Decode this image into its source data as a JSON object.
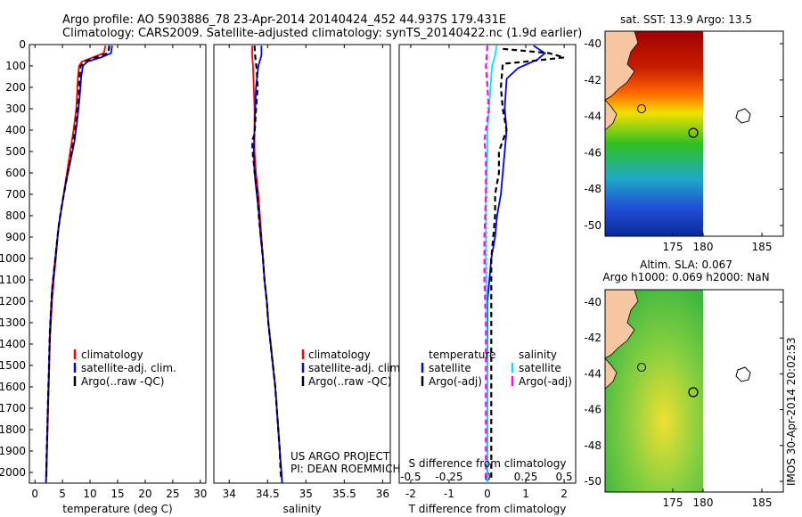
{
  "titles": {
    "line1": "Argo profile: AO 5903886_78 23-Apr-2014 20140424_452 44.937S 179.431E",
    "line2": "Climatology: CARS2009. Satellite-adjusted climatology: synTS_20140422.nc (1.9d earlier)"
  },
  "colors": {
    "climatology": "#ff0000",
    "satellite": "#0000ff",
    "argo": "#000000",
    "sal_satellite": "#00e5ff",
    "sal_argo": "#ff00ff",
    "land": "#f5c6a0"
  },
  "credits": {
    "project": "US ARGO PROJECT",
    "pi": "PI: DEAN ROEMMICH",
    "imos": "IMOS 30-Apr-2014 20:02:53"
  },
  "maps": {
    "sst_title": "sat. SST: 13.9 Argo: 13.5",
    "sla_title1": "Altim. SLA: 0.067",
    "sla_title2": "Argo h1000: 0.069 h2000: NaN",
    "x_ticks": [
      "175",
      "180",
      "185"
    ],
    "y_ticks": [
      "-40",
      "-42",
      "-44",
      "-46",
      "-48",
      "-50"
    ]
  },
  "chart_data": [
    {
      "type": "line",
      "xlabel": "temperature (deg C)",
      "x_ticks": [
        "0",
        "5",
        "10",
        "15",
        "20",
        "25",
        "30"
      ],
      "xlim": [
        -1,
        31
      ],
      "ylim": [
        0,
        2050
      ],
      "y_ticks": [
        "0",
        "100",
        "200",
        "300",
        "400",
        "500",
        "600",
        "700",
        "800",
        "900",
        "1000",
        "1100",
        "1200",
        "1300",
        "1400",
        "1500",
        "1600",
        "1700",
        "1800",
        "1900",
        "2000"
      ],
      "legend": [
        "climatology",
        "satellite-adj. clim.",
        "Argo(..raw -QC)"
      ],
      "series": [
        {
          "name": "climatology",
          "color": "#ff0000",
          "dash": false,
          "points": [
            [
              12.8,
              5
            ],
            [
              12.5,
              40
            ],
            [
              10.5,
              60
            ],
            [
              8.5,
              80
            ],
            [
              8.0,
              100
            ],
            [
              7.8,
              150
            ],
            [
              7.5,
              300
            ],
            [
              7.0,
              400
            ],
            [
              6.4,
              500
            ],
            [
              5.8,
              600
            ],
            [
              5.2,
              700
            ],
            [
              4.6,
              800
            ],
            [
              4.1,
              900
            ],
            [
              3.8,
              1000
            ],
            [
              3.4,
              1100
            ],
            [
              3.1,
              1200
            ],
            [
              2.9,
              1300
            ],
            [
              2.7,
              1400
            ],
            [
              2.6,
              1500
            ],
            [
              2.5,
              1600
            ],
            [
              2.4,
              1700
            ],
            [
              2.3,
              1800
            ],
            [
              2.2,
              1900
            ],
            [
              2.1,
              2000
            ],
            [
              2.0,
              2050
            ]
          ]
        },
        {
          "name": "satellite-adj. clim.",
          "color": "#0000ff",
          "dash": false,
          "points": [
            [
              14.0,
              5
            ],
            [
              13.8,
              40
            ],
            [
              12.0,
              60
            ],
            [
              9.5,
              80
            ],
            [
              8.7,
              100
            ],
            [
              8.4,
              150
            ],
            [
              8.1,
              250
            ],
            [
              7.7,
              350
            ],
            [
              7.2,
              450
            ],
            [
              6.4,
              550
            ],
            [
              5.6,
              650
            ],
            [
              4.9,
              750
            ],
            [
              4.3,
              850
            ],
            [
              3.9,
              950
            ],
            [
              3.5,
              1050
            ],
            [
              3.1,
              1150
            ],
            [
              2.9,
              1250
            ],
            [
              2.7,
              1350
            ],
            [
              2.6,
              1450
            ],
            [
              2.5,
              1550
            ],
            [
              2.4,
              1650
            ],
            [
              2.3,
              1750
            ],
            [
              2.2,
              1850
            ],
            [
              2.1,
              1950
            ],
            [
              2.0,
              2050
            ]
          ]
        },
        {
          "name": "Argo(..raw -QC)",
          "color": "#000000",
          "dash": true,
          "points": [
            [
              13.5,
              5
            ],
            [
              13.3,
              40
            ],
            [
              11.0,
              60
            ],
            [
              9.0,
              80
            ],
            [
              8.3,
              100
            ],
            [
              8.1,
              150
            ],
            [
              7.9,
              250
            ],
            [
              7.5,
              350
            ],
            [
              7.0,
              450
            ],
            [
              6.3,
              550
            ],
            [
              5.6,
              650
            ],
            [
              4.9,
              750
            ],
            [
              4.3,
              850
            ],
            [
              3.9,
              950
            ],
            [
              3.5,
              1050
            ],
            [
              3.1,
              1150
            ],
            [
              2.9,
              1250
            ],
            [
              2.7,
              1350
            ],
            [
              2.6,
              1450
            ],
            [
              2.5,
              1550
            ],
            [
              2.4,
              1650
            ],
            [
              2.3,
              1750
            ],
            [
              2.2,
              1850
            ],
            [
              2.1,
              1950
            ],
            [
              2.05,
              2030
            ]
          ]
        }
      ]
    },
    {
      "type": "line",
      "xlabel": "salinity",
      "x_ticks": [
        "34",
        "34.5",
        "35",
        "35.5",
        "36"
      ],
      "xlim": [
        33.8,
        36.1
      ],
      "ylim": [
        0,
        2050
      ],
      "legend": [
        "climatology",
        "satellite-adj. clim.",
        "Argo(..raw -QC)"
      ],
      "series": [
        {
          "name": "climatology",
          "color": "#ff0000",
          "dash": false,
          "points": [
            [
              34.3,
              5
            ],
            [
              34.3,
              50
            ],
            [
              34.31,
              100
            ],
            [
              34.32,
              200
            ],
            [
              34.33,
              300
            ],
            [
              34.33,
              400
            ],
            [
              34.33,
              500
            ],
            [
              34.35,
              600
            ],
            [
              34.38,
              700
            ],
            [
              34.4,
              800
            ],
            [
              34.42,
              900
            ],
            [
              34.44,
              1000
            ],
            [
              34.46,
              1100
            ],
            [
              34.49,
              1200
            ],
            [
              34.51,
              1300
            ],
            [
              34.54,
              1400
            ],
            [
              34.57,
              1500
            ],
            [
              34.6,
              1600
            ],
            [
              34.62,
              1700
            ],
            [
              34.64,
              1800
            ],
            [
              34.66,
              1900
            ],
            [
              34.68,
              2000
            ],
            [
              34.69,
              2050
            ]
          ]
        },
        {
          "name": "satellite-adj. clim.",
          "color": "#0000ff",
          "dash": false,
          "points": [
            [
              34.42,
              5
            ],
            [
              34.42,
              50
            ],
            [
              34.38,
              100
            ],
            [
              34.35,
              200
            ],
            [
              34.34,
              300
            ],
            [
              34.33,
              400
            ],
            [
              34.32,
              500
            ],
            [
              34.33,
              600
            ],
            [
              34.36,
              700
            ],
            [
              34.39,
              800
            ],
            [
              34.41,
              900
            ],
            [
              34.44,
              1000
            ],
            [
              34.46,
              1100
            ],
            [
              34.49,
              1200
            ],
            [
              34.51,
              1300
            ],
            [
              34.54,
              1400
            ],
            [
              34.57,
              1500
            ],
            [
              34.6,
              1600
            ],
            [
              34.62,
              1700
            ],
            [
              34.64,
              1800
            ],
            [
              34.66,
              1900
            ],
            [
              34.68,
              2000
            ],
            [
              34.69,
              2050
            ]
          ]
        },
        {
          "name": "Argo(..raw -QC)",
          "color": "#000000",
          "dash": true,
          "points": [
            [
              34.33,
              5
            ],
            [
              34.34,
              60
            ],
            [
              34.36,
              120
            ],
            [
              34.37,
              200
            ],
            [
              34.35,
              300
            ],
            [
              34.33,
              420
            ],
            [
              34.3,
              450
            ],
            [
              34.31,
              520
            ],
            [
              34.34,
              620
            ],
            [
              34.37,
              720
            ],
            [
              34.39,
              820
            ],
            [
              34.42,
              920
            ],
            [
              34.44,
              1000
            ],
            [
              34.46,
              1100
            ],
            [
              34.49,
              1200
            ],
            [
              34.51,
              1300
            ],
            [
              34.54,
              1400
            ],
            [
              34.57,
              1500
            ],
            [
              34.6,
              1600
            ],
            [
              34.62,
              1700
            ],
            [
              34.64,
              1800
            ],
            [
              34.66,
              1900
            ],
            [
              34.67,
              2000
            ],
            [
              34.68,
              2030
            ]
          ]
        }
      ]
    },
    {
      "type": "line",
      "xlabel": "T difference from climatology",
      "xlabel_top": "S difference from climatology",
      "x_ticks": [
        "-2",
        "-1",
        "0",
        "1",
        "2"
      ],
      "x_ticks_top": [
        "-0.5",
        "-0.25",
        "0",
        "0.25",
        "0.5"
      ],
      "xlim": [
        -2.3,
        2.3
      ],
      "ylim": [
        0,
        2050
      ],
      "legend_headers": [
        "temperature",
        "salinity"
      ],
      "legend_t": [
        "satellite",
        "Argo(-adj)"
      ],
      "legend_s": [
        "satellite",
        "Argo(-adj)"
      ],
      "series": [
        {
          "name": "satellite",
          "color": "#0000ff",
          "dash": false,
          "points": [
            [
              1.2,
              5
            ],
            [
              1.5,
              40
            ],
            [
              1.3,
              70
            ],
            [
              0.8,
              110
            ],
            [
              0.5,
              160
            ],
            [
              0.45,
              300
            ],
            [
              0.5,
              400
            ],
            [
              0.45,
              500
            ],
            [
              0.4,
              600
            ],
            [
              0.35,
              700
            ],
            [
              0.25,
              800
            ],
            [
              0.2,
              900
            ],
            [
              0.1,
              1000
            ],
            [
              0.05,
              1100
            ],
            [
              0.0,
              1200
            ],
            [
              0.0,
              1400
            ],
            [
              0.0,
              1600
            ],
            [
              0.0,
              1800
            ],
            [
              0.0,
              2050
            ]
          ]
        },
        {
          "name": "Argo(-adj)",
          "color": "#000000",
          "dash": true,
          "points": [
            [
              0.4,
              20
            ],
            [
              1.6,
              40
            ],
            [
              2.0,
              60
            ],
            [
              1.0,
              80
            ],
            [
              0.4,
              90
            ],
            [
              0.35,
              200
            ],
            [
              0.4,
              300
            ],
            [
              0.5,
              400
            ],
            [
              0.3,
              500
            ],
            [
              0.3,
              600
            ],
            [
              0.2,
              700
            ],
            [
              0.2,
              800
            ],
            [
              0.15,
              900
            ],
            [
              0.1,
              1000
            ],
            [
              0.1,
              1200
            ],
            [
              0.1,
              1400
            ],
            [
              0.1,
              1600
            ],
            [
              0.1,
              1800
            ],
            [
              0.1,
              2030
            ]
          ]
        },
        {
          "name": "satellite",
          "axis": "S",
          "color": "#00e5ff",
          "dash": false,
          "points": [
            [
              0.06,
              5
            ],
            [
              0.05,
              50
            ],
            [
              0.03,
              100
            ],
            [
              0.02,
              200
            ],
            [
              0.01,
              300
            ],
            [
              0.0,
              400
            ],
            [
              0.0,
              500
            ],
            [
              -0.01,
              700
            ],
            [
              -0.01,
              1000
            ],
            [
              0.0,
              1500
            ],
            [
              0.0,
              2050
            ]
          ]
        },
        {
          "name": "Argo(-adj)",
          "axis": "S",
          "color": "#ff00ff",
          "dash": true,
          "points": [
            [
              0.0,
              5
            ],
            [
              -0.01,
              100
            ],
            [
              0.0,
              200
            ],
            [
              0.01,
              300
            ],
            [
              -0.02,
              450
            ],
            [
              -0.01,
              520
            ],
            [
              -0.01,
              700
            ],
            [
              -0.02,
              900
            ],
            [
              -0.02,
              1100
            ],
            [
              -0.01,
              1300
            ],
            [
              -0.01,
              1500
            ],
            [
              -0.01,
              1800
            ],
            [
              -0.01,
              2030
            ]
          ]
        }
      ]
    }
  ]
}
